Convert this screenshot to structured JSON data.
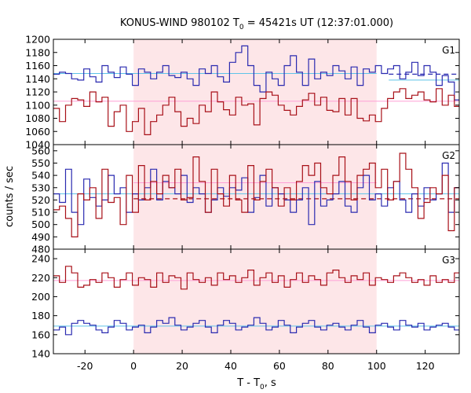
{
  "chart_data": {
    "type": "line",
    "title": {
      "main": "KONUS-WIND 980102 T",
      "sub": "0",
      "rest": " = 45421s UT (12:37:01.000)"
    },
    "xlabel": {
      "main": "T - T",
      "sub": "0",
      "rest": ", s"
    },
    "ylabel": "counts / sec",
    "xlim": [
      -33,
      134
    ],
    "x_ticks": [
      -20,
      0,
      20,
      40,
      60,
      80,
      100,
      120
    ],
    "shaded_interval": [
      0,
      100
    ],
    "colors": {
      "shade": "#fde6e8",
      "red": "#a81018",
      "blue": "#2a2ab0",
      "cyan_bg": "#5fc4e8",
      "pink_bg": "#ff9fd6"
    },
    "bin_width": 2.5,
    "panels": [
      {
        "name": "G1",
        "ylim": [
          1040,
          1200
        ],
        "y_ticks": [
          1040,
          1060,
          1080,
          1100,
          1120,
          1140,
          1160,
          1180,
          1200
        ],
        "series": [
          {
            "color": "blue",
            "x_start": -33,
            "values": [
              1147,
              1150,
              1148,
              1140,
              1138,
              1155,
              1143,
              1135,
              1160,
              1150,
              1142,
              1158,
              1147,
              1130,
              1155,
              1150,
              1140,
              1150,
              1160,
              1145,
              1142,
              1150,
              1140,
              1130,
              1155,
              1148,
              1160,
              1143,
              1135,
              1165,
              1180,
              1190,
              1160,
              1130,
              1120,
              1150,
              1140,
              1130,
              1160,
              1175,
              1150,
              1130,
              1170,
              1140,
              1150,
              1145,
              1160,
              1152,
              1140,
              1158,
              1130,
              1155,
              1150,
              1160,
              1148,
              1155,
              1160,
              1140,
              1150,
              1165,
              1145,
              1160,
              1150,
              1130,
              1145,
              1135,
              1108,
              1130,
              1165
            ]
          },
          {
            "color": "red",
            "x_start": -33,
            "values": [
              1095,
              1075,
              1100,
              1110,
              1108,
              1098,
              1120,
              1105,
              1112,
              1068,
              1090,
              1100,
              1060,
              1075,
              1095,
              1055,
              1075,
              1085,
              1100,
              1112,
              1090,
              1068,
              1080,
              1072,
              1100,
              1090,
              1120,
              1105,
              1093,
              1085,
              1112,
              1100,
              1102,
              1070,
              1110,
              1120,
              1115,
              1100,
              1092,
              1085,
              1098,
              1108,
              1118,
              1100,
              1112,
              1092,
              1090,
              1110,
              1085,
              1110,
              1080,
              1076,
              1085,
              1075,
              1095,
              1110,
              1120,
              1125,
              1110,
              1115,
              1120,
              1108,
              1105,
              1125,
              1100,
              1115,
              1098,
              1108,
              1090
            ]
          }
        ],
        "reference_lines": [
          {
            "color": "cyan_bg",
            "y": 1148,
            "x": [
              -33,
              100
            ]
          },
          {
            "color": "pink_bg",
            "y": 1106,
            "x": [
              -33,
              134
            ]
          },
          {
            "color": "cyan_bg",
            "y": 1138,
            "x": [
              105,
              134
            ]
          },
          {
            "color": "blue",
            "y": 1147,
            "x": [
              105,
              134
            ],
            "dashed": true
          }
        ]
      },
      {
        "name": "G2",
        "ylim": [
          480,
          565
        ],
        "y_ticks": [
          480,
          490,
          500,
          510,
          520,
          530,
          540,
          550,
          560
        ],
        "series": [
          {
            "color": "blue",
            "x_start": -33,
            "values": [
              525,
              518,
              545,
              510,
              500,
              537,
              522,
              515,
              520,
              540,
              525,
              530,
              510,
              525,
              520,
              530,
              545,
              520,
              535,
              530,
              525,
              540,
              518,
              530,
              525,
              510,
              520,
              530,
              523,
              530,
              528,
              538,
              510,
              522,
              540,
              515,
              530,
              525,
              520,
              510,
              520,
              530,
              500,
              535,
              515,
              520,
              525,
              535,
              515,
              510,
              530,
              540,
              520,
              525,
              515,
              530,
              535,
              520,
              510,
              525,
              515,
              530,
              520,
              525,
              550,
              510,
              530,
              520,
              540
            ]
          },
          {
            "color": "red",
            "x_start": -33,
            "values": [
              512,
              515,
              505,
              490,
              525,
              520,
              530,
              505,
              545,
              518,
              522,
              500,
              540,
              510,
              548,
              520,
              535,
              525,
              540,
              530,
              545,
              520,
              522,
              555,
              535,
              510,
              545,
              525,
              515,
              540,
              520,
              510,
              548,
              520,
              535,
              545,
              530,
              515,
              530,
              520,
              535,
              548,
              540,
              550,
              530,
              525,
              540,
              555,
              535,
              520,
              540,
              545,
              550,
              530,
              545,
              520,
              535,
              558,
              545,
              530,
              505,
              518,
              530,
              525,
              540,
              495,
              530,
              520,
              515
            ]
          }
        ],
        "reference_lines": [
          {
            "color": "cyan_bg",
            "y": 525,
            "x": [
              -33,
              134
            ]
          },
          {
            "color": "pink_bg",
            "y": 534,
            "x": [
              0,
              100
            ]
          },
          {
            "color": "red",
            "y": 521,
            "x": [
              0,
              134
            ],
            "dashed": true
          }
        ]
      },
      {
        "name": "G3",
        "ylim": [
          140,
          250
        ],
        "y_ticks": [
          140,
          160,
          180,
          200,
          220,
          240
        ],
        "series": [
          {
            "color": "red",
            "x_start": -33,
            "values": [
              222,
              215,
              232,
              225,
              210,
              212,
              218,
              215,
              225,
              220,
              210,
              218,
              225,
              212,
              220,
              218,
              210,
              225,
              215,
              222,
              220,
              208,
              225,
              218,
              215,
              220,
              212,
              225,
              218,
              222,
              215,
              220,
              228,
              212,
              220,
              225,
              215,
              222,
              210,
              218,
              225,
              215,
              222,
              218,
              212,
              225,
              228,
              220,
              215,
              222,
              218,
              225,
              212,
              220,
              218,
              215,
              222,
              225,
              220,
              215,
              218,
              212,
              222,
              215,
              218,
              215,
              225,
              210,
              230
            ]
          },
          {
            "color": "blue",
            "x_start": -33,
            "values": [
              165,
              168,
              160,
              172,
              175,
              172,
              170,
              165,
              162,
              168,
              175,
              172,
              165,
              168,
              170,
              162,
              168,
              175,
              172,
              178,
              170,
              165,
              168,
              172,
              175,
              168,
              162,
              170,
              175,
              172,
              165,
              168,
              170,
              178,
              172,
              165,
              168,
              175,
              170,
              162,
              168,
              172,
              175,
              168,
              165,
              170,
              172,
              168,
              165,
              170,
              175,
              168,
              162,
              170,
              172,
              168,
              165,
              175,
              170,
              168,
              172,
              165,
              168,
              170,
              172,
              168,
              165,
              172,
              160
            ]
          }
        ],
        "reference_lines": [
          {
            "color": "pink_bg",
            "y": 217,
            "x": [
              -33,
              134
            ]
          },
          {
            "color": "cyan_bg",
            "y": 169,
            "x": [
              -33,
              134
            ]
          }
        ]
      }
    ]
  }
}
